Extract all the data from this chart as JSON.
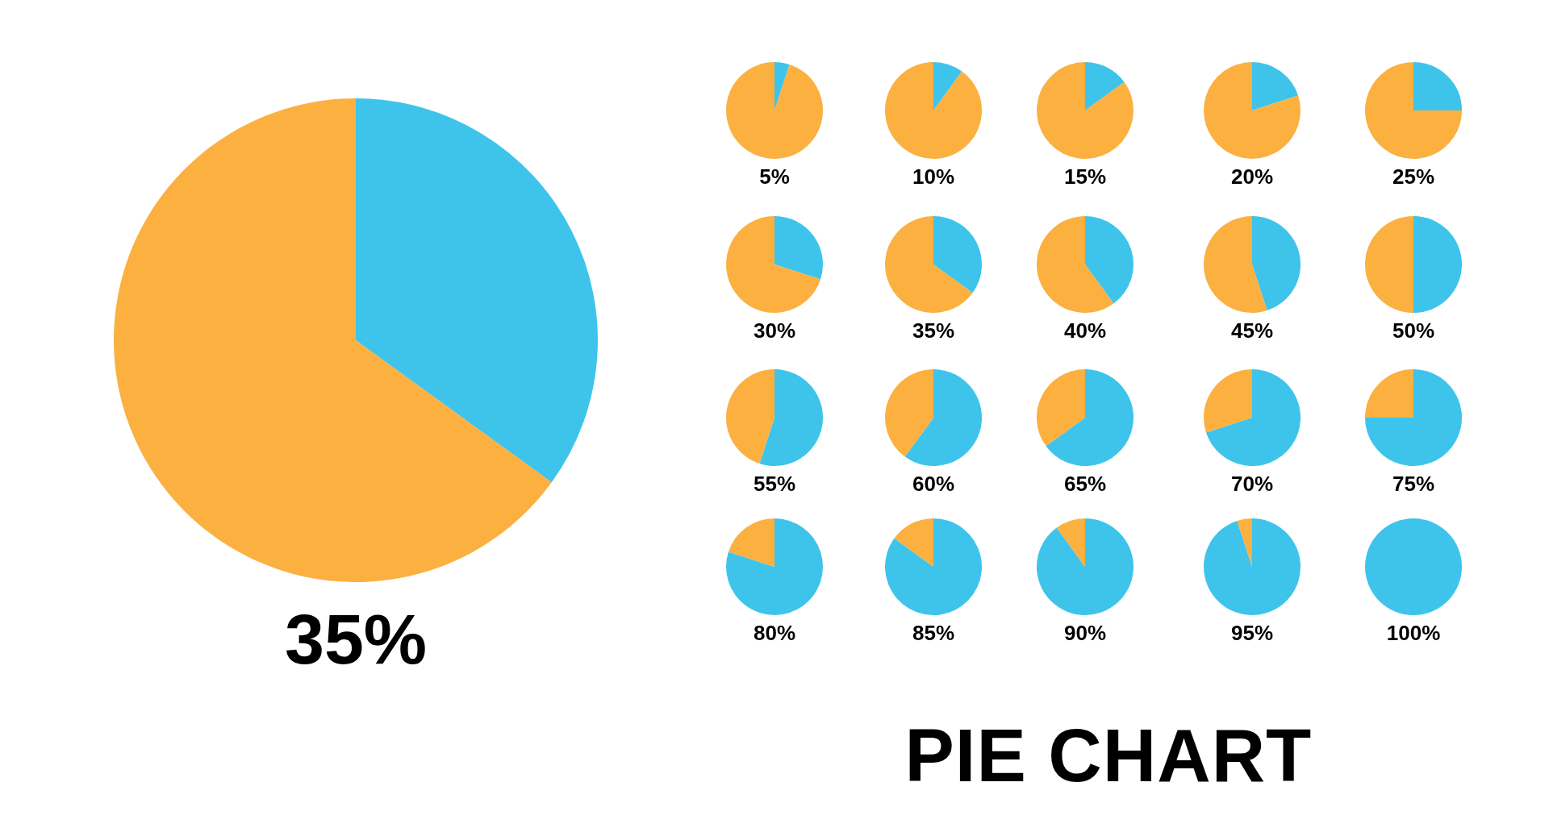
{
  "chart_data": [
    {
      "type": "pie",
      "categories": [
        null,
        null
      ],
      "values": [
        35,
        65
      ],
      "colors": [
        "#3ec4ea",
        "#fbb040"
      ],
      "title": "35%",
      "legend": false
    },
    {
      "type": "pie",
      "categories": [
        null,
        null
      ],
      "values": [
        5,
        95
      ],
      "colors": [
        "#3ec4ea",
        "#fbb040"
      ],
      "title": "5%",
      "legend": false
    },
    {
      "type": "pie",
      "categories": [
        null,
        null
      ],
      "values": [
        10,
        90
      ],
      "colors": [
        "#3ec4ea",
        "#fbb040"
      ],
      "title": "10%",
      "legend": false
    },
    {
      "type": "pie",
      "categories": [
        null,
        null
      ],
      "values": [
        15,
        85
      ],
      "colors": [
        "#3ec4ea",
        "#fbb040"
      ],
      "title": "15%",
      "legend": false
    },
    {
      "type": "pie",
      "categories": [
        null,
        null
      ],
      "values": [
        20,
        80
      ],
      "colors": [
        "#3ec4ea",
        "#fbb040"
      ],
      "title": "20%",
      "legend": false
    },
    {
      "type": "pie",
      "categories": [
        null,
        null
      ],
      "values": [
        25,
        75
      ],
      "colors": [
        "#3ec4ea",
        "#fbb040"
      ],
      "title": "25%",
      "legend": false
    },
    {
      "type": "pie",
      "categories": [
        null,
        null
      ],
      "values": [
        30,
        70
      ],
      "colors": [
        "#3ec4ea",
        "#fbb040"
      ],
      "title": "30%",
      "legend": false
    },
    {
      "type": "pie",
      "categories": [
        null,
        null
      ],
      "values": [
        35,
        65
      ],
      "colors": [
        "#3ec4ea",
        "#fbb040"
      ],
      "title": "35%",
      "legend": false
    },
    {
      "type": "pie",
      "categories": [
        null,
        null
      ],
      "values": [
        40,
        60
      ],
      "colors": [
        "#3ec4ea",
        "#fbb040"
      ],
      "title": "40%",
      "legend": false
    },
    {
      "type": "pie",
      "categories": [
        null,
        null
      ],
      "values": [
        45,
        55
      ],
      "colors": [
        "#3ec4ea",
        "#fbb040"
      ],
      "title": "45%",
      "legend": false
    },
    {
      "type": "pie",
      "categories": [
        null,
        null
      ],
      "values": [
        50,
        50
      ],
      "colors": [
        "#3ec4ea",
        "#fbb040"
      ],
      "title": "50%",
      "legend": false
    },
    {
      "type": "pie",
      "categories": [
        null,
        null
      ],
      "values": [
        55,
        45
      ],
      "colors": [
        "#3ec4ea",
        "#fbb040"
      ],
      "title": "55%",
      "legend": false
    },
    {
      "type": "pie",
      "categories": [
        null,
        null
      ],
      "values": [
        60,
        40
      ],
      "colors": [
        "#3ec4ea",
        "#fbb040"
      ],
      "title": "60%",
      "legend": false
    },
    {
      "type": "pie",
      "categories": [
        null,
        null
      ],
      "values": [
        65,
        35
      ],
      "colors": [
        "#3ec4ea",
        "#fbb040"
      ],
      "title": "65%",
      "legend": false
    },
    {
      "type": "pie",
      "categories": [
        null,
        null
      ],
      "values": [
        70,
        30
      ],
      "colors": [
        "#3ec4ea",
        "#fbb040"
      ],
      "title": "70%",
      "legend": false
    },
    {
      "type": "pie",
      "categories": [
        null,
        null
      ],
      "values": [
        75,
        25
      ],
      "colors": [
        "#3ec4ea",
        "#fbb040"
      ],
      "title": "75%",
      "legend": false
    },
    {
      "type": "pie",
      "categories": [
        null,
        null
      ],
      "values": [
        80,
        20
      ],
      "colors": [
        "#3ec4ea",
        "#fbb040"
      ],
      "title": "80%",
      "legend": false
    },
    {
      "type": "pie",
      "categories": [
        null,
        null
      ],
      "values": [
        85,
        15
      ],
      "colors": [
        "#3ec4ea",
        "#fbb040"
      ],
      "title": "85%",
      "legend": false
    },
    {
      "type": "pie",
      "categories": [
        null,
        null
      ],
      "values": [
        90,
        10
      ],
      "colors": [
        "#3ec4ea",
        "#fbb040"
      ],
      "title": "90%",
      "legend": false
    },
    {
      "type": "pie",
      "categories": [
        null,
        null
      ],
      "values": [
        95,
        5
      ],
      "colors": [
        "#3ec4ea",
        "#fbb040"
      ],
      "title": "95%",
      "legend": false
    },
    {
      "type": "pie",
      "categories": [
        null,
        null
      ],
      "values": [
        100,
        0
      ],
      "colors": [
        "#3ec4ea",
        "#fbb040"
      ],
      "title": "100%",
      "legend": false
    },
    {
      "type": "other",
      "title": "PIE CHART"
    }
  ]
}
